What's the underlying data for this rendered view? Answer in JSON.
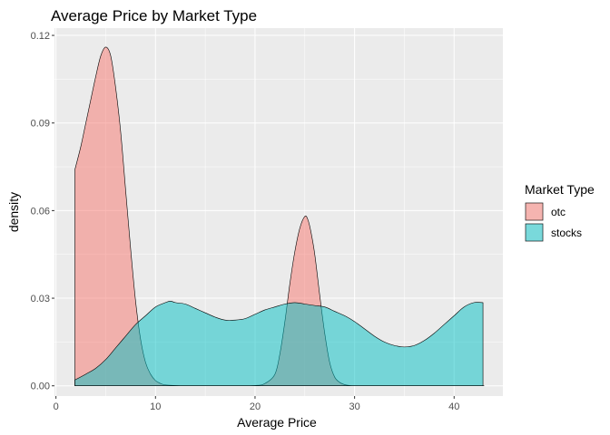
{
  "chart_data": {
    "type": "area",
    "title": "Average Price by Market Type",
    "xlabel": "Average Price",
    "ylabel": "density",
    "xlim": [
      -0.15,
      44.9
    ],
    "ylim": [
      -0.0035,
      0.1225
    ],
    "xticks": [
      0,
      10,
      20,
      30,
      40
    ],
    "xtick_labels": [
      "0",
      "10",
      "20",
      "30",
      "40"
    ],
    "yticks": [
      0,
      0.03,
      0.06,
      0.09,
      0.12
    ],
    "ytick_labels": [
      "0.00",
      "0.03",
      "0.06",
      "0.09",
      "0.12"
    ],
    "grid": true,
    "legend": {
      "title": "Market Type",
      "placement": "right"
    },
    "series": [
      {
        "name": "otc",
        "color": "#F8766D",
        "x": [
          1.9,
          2.5,
          3.0,
          3.5,
          4.0,
          4.5,
          5.0,
          5.5,
          6.0,
          6.5,
          7.0,
          7.5,
          8.0,
          8.5,
          9.0,
          9.5,
          10.0,
          10.5,
          11.0,
          12.0,
          13.0,
          14.0,
          16.0,
          18.0,
          20.0,
          21.0,
          22.0,
          22.5,
          23.0,
          23.5,
          24.0,
          24.5,
          25.0,
          25.3,
          25.6,
          26.0,
          26.5,
          27.0,
          27.5,
          28.0,
          28.5,
          29.0,
          29.5,
          30.0,
          31.0,
          32.0,
          35.0,
          38.0,
          41.0,
          43.0
        ],
        "values": [
          0.074,
          0.082,
          0.09,
          0.098,
          0.106,
          0.113,
          0.116,
          0.113,
          0.102,
          0.087,
          0.067,
          0.047,
          0.029,
          0.016,
          0.008,
          0.004,
          0.0018,
          0.0008,
          0.0003,
          0.0001,
          0.0,
          0.0,
          0.0,
          0.0,
          0.0001,
          0.0008,
          0.004,
          0.011,
          0.022,
          0.035,
          0.046,
          0.054,
          0.058,
          0.057,
          0.053,
          0.045,
          0.031,
          0.018,
          0.008,
          0.003,
          0.0012,
          0.0004,
          0.0001,
          0.0,
          0.0,
          0.0,
          0.0,
          0.0,
          0.0,
          0.0
        ]
      },
      {
        "name": "stocks",
        "color": "#00BFC4",
        "x": [
          1.9,
          3.0,
          4.0,
          5.0,
          6.0,
          7.0,
          8.0,
          9.0,
          10.0,
          11.0,
          11.5,
          12.0,
          13.0,
          14.0,
          15.0,
          16.0,
          17.0,
          18.0,
          19.0,
          20.0,
          21.0,
          22.0,
          23.0,
          24.0,
          25.0,
          26.0,
          27.0,
          28.0,
          29.0,
          30.0,
          31.0,
          32.0,
          33.0,
          34.0,
          35.0,
          36.0,
          37.0,
          38.0,
          39.0,
          40.0,
          41.0,
          42.0,
          42.9
        ],
        "values": [
          0.002,
          0.004,
          0.006,
          0.009,
          0.013,
          0.017,
          0.021,
          0.024,
          0.027,
          0.0285,
          0.029,
          0.0285,
          0.028,
          0.0265,
          0.025,
          0.0235,
          0.0225,
          0.0225,
          0.023,
          0.0245,
          0.026,
          0.027,
          0.028,
          0.0285,
          0.028,
          0.0275,
          0.027,
          0.0255,
          0.024,
          0.022,
          0.0195,
          0.017,
          0.015,
          0.0138,
          0.0133,
          0.0138,
          0.0155,
          0.018,
          0.021,
          0.024,
          0.027,
          0.0285,
          0.0285
        ]
      }
    ]
  }
}
